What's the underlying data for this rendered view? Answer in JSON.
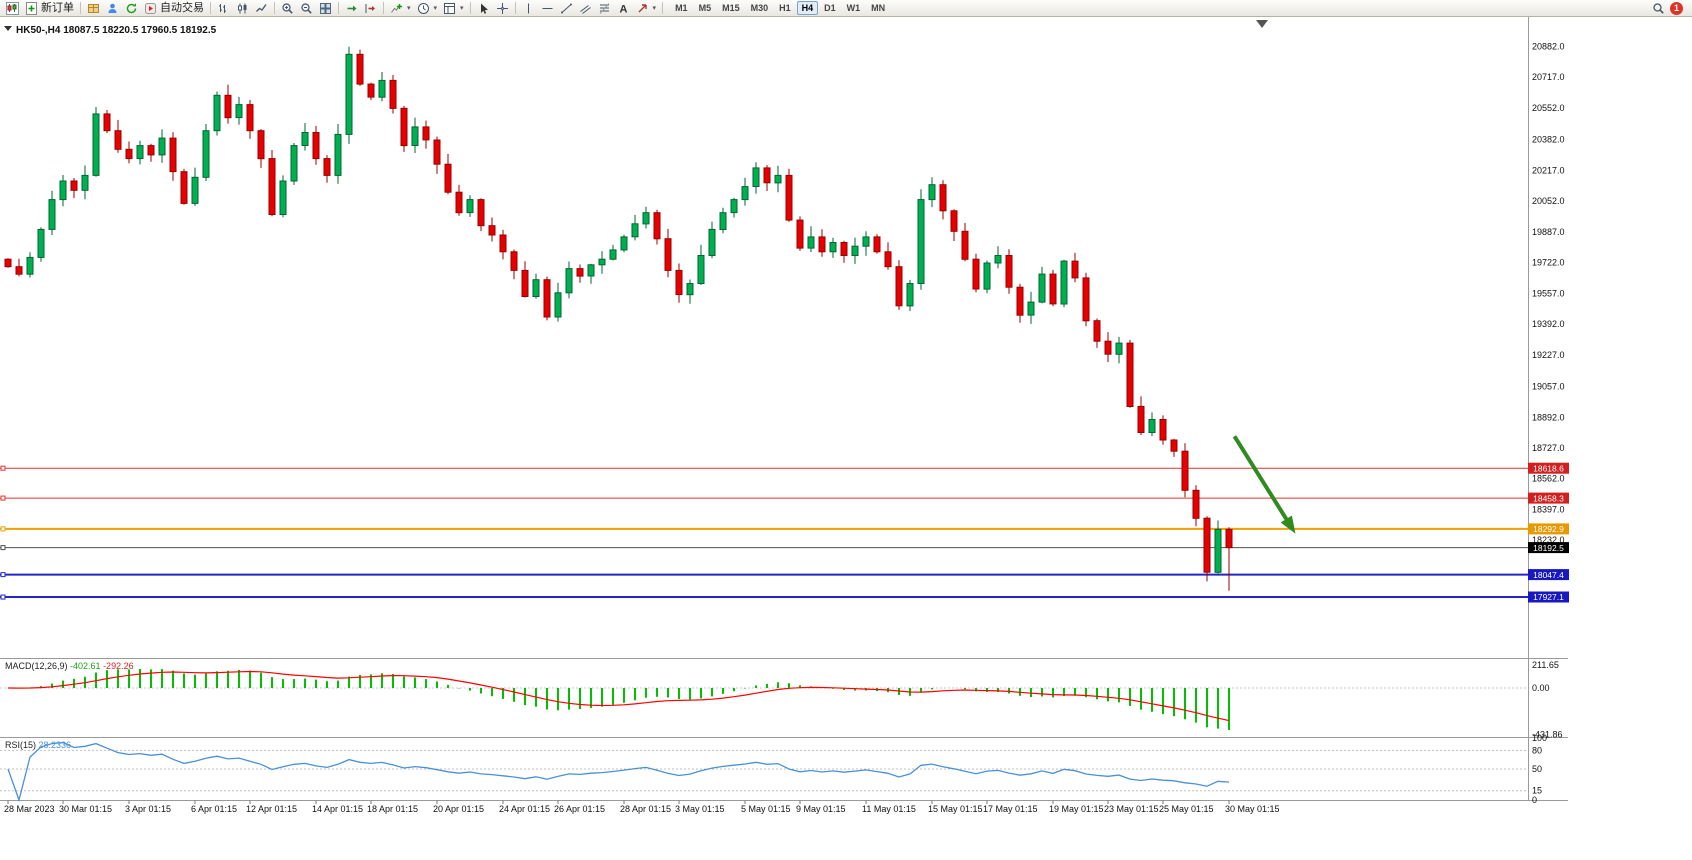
{
  "toolbar": {
    "new_order_label": "新订单",
    "autotrading_label": "自动交易",
    "timeframes": [
      "M1",
      "M5",
      "M15",
      "M30",
      "H1",
      "H4",
      "D1",
      "W1",
      "MN"
    ],
    "active_timeframe": "H4",
    "notification_count": "1"
  },
  "chart": {
    "title": {
      "symbol": "HK50-,H4",
      "open": "18087.5",
      "high": "18220.5",
      "low": "17960.5",
      "close": "18192.5"
    }
  },
  "chart_data": {
    "type": "candlestick",
    "symbol": "HK50-",
    "timeframe": "H4",
    "ohlc_current": {
      "open": 18087.5,
      "high": 18220.5,
      "low": 17960.5,
      "close": 18192.5
    },
    "colors": {
      "up": "#00b050",
      "up_border": "#006633",
      "down": "#e60000",
      "down_border": "#990000",
      "background": "#ffffff"
    },
    "candles": {
      "first_open": 19740,
      "last_low": 17960.5,
      "closes": [
        19700,
        19660,
        19750,
        19900,
        20060,
        20160,
        20110,
        20190,
        20520,
        20430,
        20330,
        20280,
        20350,
        20300,
        20390,
        20210,
        20040,
        20180,
        20430,
        20620,
        20500,
        20570,
        20430,
        20280,
        19980,
        20160,
        20350,
        20420,
        20280,
        20190,
        20410,
        20840,
        20680,
        20610,
        20700,
        20550,
        20350,
        20450,
        20380,
        20250,
        20100,
        19990,
        20060,
        19920,
        19870,
        19780,
        19680,
        19540,
        19630,
        19430,
        19560,
        19690,
        19650,
        19710,
        19740,
        19790,
        19860,
        19930,
        19990,
        19850,
        19680,
        19550,
        19610,
        19760,
        19900,
        19990,
        20060,
        20130,
        20230,
        20150,
        20190,
        19950,
        19800,
        19860,
        19780,
        19830,
        19760,
        19810,
        19860,
        19780,
        19700,
        19490,
        19610,
        20060,
        20140,
        20000,
        19890,
        19740,
        19580,
        19720,
        19760,
        19590,
        19440,
        19510,
        19660,
        19500,
        19730,
        19640,
        19410,
        19300,
        19230,
        19290,
        18950,
        18810,
        18880,
        18770,
        18710,
        18500,
        18350,
        18060,
        18290,
        18192.5
      ]
    },
    "y_axis": {
      "ticks": [
        "20882.0",
        "20717.0",
        "20552.0",
        "20382.0",
        "20217.0",
        "20052.0",
        "19887.0",
        "19722.0",
        "19557.0",
        "19392.0",
        "19227.0",
        "19057.0",
        "18892.0",
        "18727.0",
        "18562.0",
        "18397.0",
        "18232.0"
      ]
    },
    "x_axis": {
      "labels": [
        {
          "t": "28 Mar 2023",
          "i": 0
        },
        {
          "t": "30 Mar 01:15",
          "i": 5
        },
        {
          "t": "3 Apr 01:15",
          "i": 11
        },
        {
          "t": "6 Apr 01:15",
          "i": 17
        },
        {
          "t": "12 Apr 01:15",
          "i": 22
        },
        {
          "t": "14 Apr 01:15",
          "i": 28
        },
        {
          "t": "18 Apr 01:15",
          "i": 33
        },
        {
          "t": "20 Apr 01:15",
          "i": 39
        },
        {
          "t": "24 Apr 01:15",
          "i": 45
        },
        {
          "t": "26 Apr 01:15",
          "i": 50
        },
        {
          "t": "28 Apr 01:15",
          "i": 56
        },
        {
          "t": "3 May 01:15",
          "i": 61
        },
        {
          "t": "5 May 01:15",
          "i": 67
        },
        {
          "t": "9 May 01:15",
          "i": 72
        },
        {
          "t": "11 May 01:15",
          "i": 78
        },
        {
          "t": "15 May 01:15",
          "i": 84
        },
        {
          "t": "17 May 01:15",
          "i": 89
        },
        {
          "t": "19 May 01:15",
          "i": 95
        },
        {
          "t": "23 May 01:15",
          "i": 100
        },
        {
          "t": "25 May 01:15",
          "i": 105
        },
        {
          "t": "30 May 01:15",
          "i": 111
        }
      ]
    },
    "levels": [
      {
        "price": 18618.6,
        "color": "#e03030",
        "width": 1,
        "label": "18618.6",
        "label_bg": "#d02020"
      },
      {
        "price": 18458.3,
        "color": "#e03030",
        "width": 1,
        "label": "18458.3",
        "label_bg": "#d02020"
      },
      {
        "price": 18292.9,
        "color": "#f0a000",
        "width": 2,
        "label": "18292.9",
        "label_bg": "#e89800"
      },
      {
        "price": 18192.5,
        "color": "#505050",
        "width": 1,
        "label": "18192.5",
        "label_bg": "#000000"
      },
      {
        "price": 18047.4,
        "color": "#2424c8",
        "width": 2,
        "label": "18047.4",
        "label_bg": "#1818c0"
      },
      {
        "price": 17927.1,
        "color": "#2424c8",
        "width": 2,
        "label": "17927.1",
        "label_bg": "#1818c0"
      }
    ],
    "macd": {
      "label": "MACD(12,26,9)",
      "value_main": "-402.61",
      "value_signal": "-292.26",
      "axis_labels": [
        "211.65",
        "0.00",
        "-431.86"
      ],
      "axis_values": [
        211.65,
        0,
        -431.86
      ],
      "color": "#00c000",
      "signal_color": "#ff0000",
      "fast": 12,
      "slow": 26,
      "smoothing": 9
    },
    "rsi": {
      "label": "RSI(15)",
      "value": "28.2336",
      "period": 15,
      "levels": [
        80,
        50,
        15
      ],
      "axis_labels": [
        "100",
        "80",
        "50",
        "15",
        "0"
      ],
      "axis_values": [
        100,
        80,
        50,
        15,
        0
      ],
      "color": "#4a90d9"
    },
    "annotation_arrow": {
      "i1": 111.5,
      "p1": 18790,
      "i2": 116.8,
      "p2": 18290,
      "color": "#2e8b1e"
    }
  }
}
